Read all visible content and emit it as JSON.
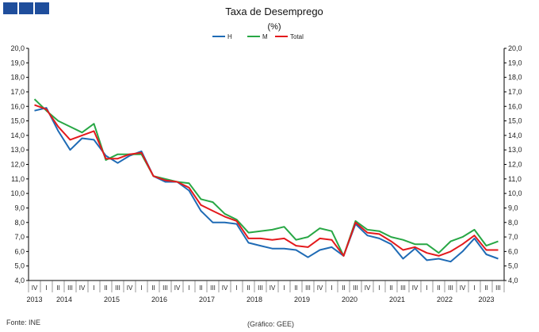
{
  "brand": {
    "color": "#1f4e9c"
  },
  "footer": {
    "source": "Fonte: INE",
    "credit": "(Gráfico: GEE)"
  },
  "chart_data": {
    "type": "line",
    "title": "Taxa de Desemprego",
    "subtitle": "(%)",
    "xlabel": "",
    "ylabel": "",
    "ylim": [
      4.0,
      20.0
    ],
    "ystep": 1.0,
    "yticks_labels": [
      "4,0",
      "5,0",
      "6,0",
      "7,0",
      "8,0",
      "9,0",
      "10,0",
      "11,0",
      "12,0",
      "13,0",
      "14,0",
      "15,0",
      "16,0",
      "17,0",
      "18,0",
      "19,0",
      "20,0"
    ],
    "legend_position": "top-center",
    "quarters": [
      "IV",
      "I",
      "II",
      "III",
      "IV",
      "I",
      "II",
      "III",
      "IV",
      "I",
      "II",
      "III",
      "IV",
      "I",
      "II",
      "III",
      "IV",
      "I",
      "II",
      "III",
      "IV",
      "I",
      "II",
      "III",
      "IV",
      "I",
      "II",
      "III",
      "IV",
      "I",
      "II",
      "III",
      "IV",
      "I",
      "II",
      "III",
      "IV",
      "I",
      "II",
      "III"
    ],
    "years": [
      {
        "label": "2013",
        "start": 0,
        "count": 1
      },
      {
        "label": "2014",
        "start": 1,
        "count": 4
      },
      {
        "label": "2015",
        "start": 5,
        "count": 4
      },
      {
        "label": "2016",
        "start": 9,
        "count": 4
      },
      {
        "label": "2017",
        "start": 13,
        "count": 4
      },
      {
        "label": "2018",
        "start": 17,
        "count": 4
      },
      {
        "label": "2019",
        "start": 21,
        "count": 4
      },
      {
        "label": "2020",
        "start": 25,
        "count": 4
      },
      {
        "label": "2021",
        "start": 29,
        "count": 4
      },
      {
        "label": "2022",
        "start": 33,
        "count": 4
      },
      {
        "label": "2023",
        "start": 37,
        "count": 3
      }
    ],
    "series": [
      {
        "name": "H",
        "color": "#1f6bb5",
        "values": [
          15.7,
          15.9,
          14.3,
          13.0,
          13.8,
          13.7,
          12.6,
          12.1,
          12.6,
          12.9,
          11.2,
          10.8,
          10.8,
          10.2,
          8.8,
          8.0,
          8.0,
          7.9,
          6.6,
          6.4,
          6.2,
          6.2,
          6.1,
          5.6,
          6.1,
          6.3,
          5.7,
          7.9,
          7.1,
          6.9,
          6.5,
          5.5,
          6.2,
          5.4,
          5.5,
          5.3,
          6.0,
          6.9,
          5.8,
          5.5
        ]
      },
      {
        "name": "M",
        "color": "#28a745",
        "values": [
          16.5,
          15.7,
          15.0,
          14.6,
          14.2,
          14.8,
          12.3,
          12.7,
          12.7,
          12.7,
          11.2,
          11.0,
          10.8,
          10.7,
          9.6,
          9.4,
          8.6,
          8.2,
          7.3,
          7.4,
          7.5,
          7.7,
          6.8,
          7.0,
          7.6,
          7.4,
          5.7,
          8.1,
          7.5,
          7.4,
          7.0,
          6.8,
          6.5,
          6.5,
          5.9,
          6.7,
          7.0,
          7.5,
          6.4,
          6.7
        ]
      },
      {
        "name": "Total",
        "color": "#e3191c",
        "values": [
          16.1,
          15.8,
          14.6,
          13.7,
          14.0,
          14.3,
          12.4,
          12.4,
          12.7,
          12.8,
          11.2,
          10.9,
          10.8,
          10.4,
          9.2,
          8.8,
          8.4,
          8.1,
          6.9,
          6.9,
          6.8,
          6.9,
          6.4,
          6.3,
          6.9,
          6.8,
          5.7,
          8.0,
          7.3,
          7.2,
          6.7,
          6.1,
          6.3,
          5.9,
          5.7,
          6.0,
          6.5,
          7.1,
          6.1,
          6.1
        ]
      }
    ]
  }
}
